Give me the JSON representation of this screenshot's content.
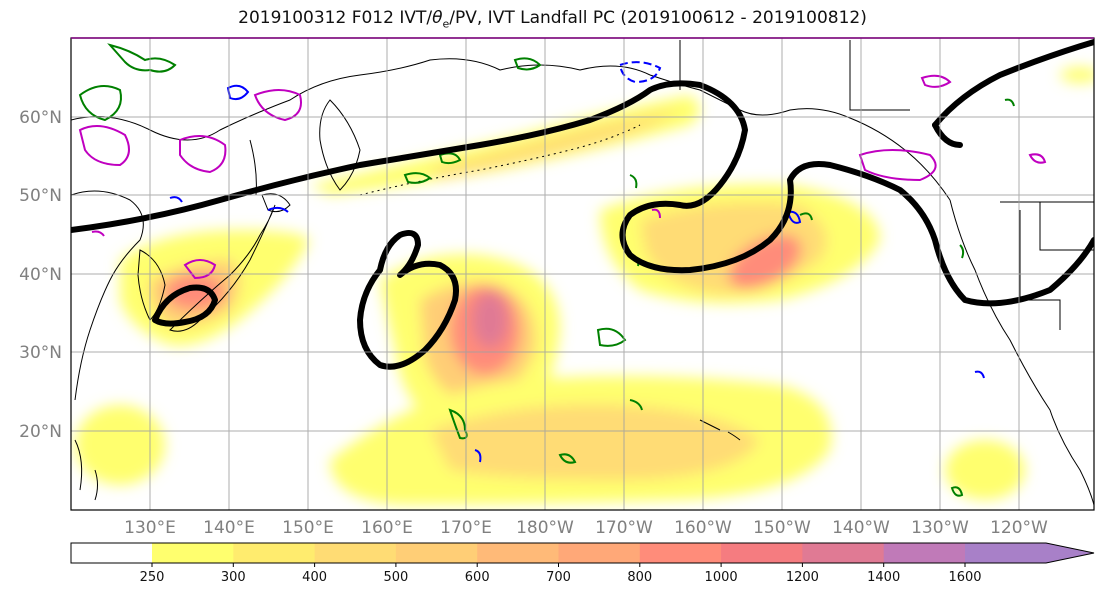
{
  "title": {
    "prefix": "2019100312 F012 IVT/",
    "theta_symbol": "θ",
    "theta_sub": "e",
    "suffix": "/PV, IVT Landfall PC (2019100612 - 2019100812)"
  },
  "map": {
    "lat_labels": [
      "60°N",
      "50°N",
      "40°N",
      "30°N",
      "20°N"
    ],
    "lon_labels": [
      "130°E",
      "140°E",
      "150°E",
      "160°E",
      "170°E",
      "180°W",
      "170°W",
      "160°W",
      "150°W",
      "140°W",
      "130°W",
      "120°W"
    ]
  },
  "colorbar": {
    "levels": [
      "250",
      "300",
      "400",
      "500",
      "600",
      "700",
      "800",
      "1000",
      "1200",
      "1400",
      "1600"
    ],
    "colors": [
      "#ffff6e",
      "#ffec6e",
      "#ffdc74",
      "#ffce76",
      "#ffba78",
      "#ffa878",
      "#ff8c7a",
      "#f57c80",
      "#e07a94",
      "#c07ab8",
      "#a880c8"
    ]
  },
  "colors": {
    "pv_contour": "#000000",
    "theta_positive": "#c000c0",
    "theta_negative": "#0000ff",
    "green_contour": "#008000",
    "coastline": "#000000",
    "grid": "#a0a0a0"
  }
}
